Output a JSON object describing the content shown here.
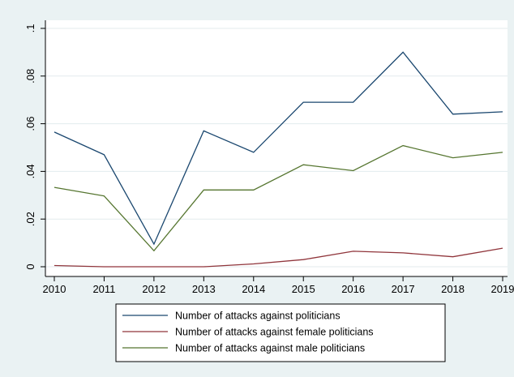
{
  "chart_data": {
    "type": "line",
    "title": "",
    "xlabel": "",
    "ylabel": "",
    "x": [
      "2010",
      "2011",
      "2012",
      "2013",
      "2014",
      "2015",
      "2016",
      "2017",
      "2018",
      "2019"
    ],
    "xlim": [
      2010,
      2019
    ],
    "ylim": [
      0,
      0.1
    ],
    "yticks": [
      0,
      0.02,
      0.04,
      0.06,
      0.08,
      0.1
    ],
    "ytick_labels": [
      "0",
      ".02",
      ".04",
      ".06",
      ".08",
      ".1"
    ],
    "grid": "horizontal",
    "legend_position": "bottom",
    "series": [
      {
        "name": "Number of attacks against politicians",
        "color": "#1a476f",
        "values": [
          0.0565,
          0.047,
          0.0095,
          0.057,
          0.048,
          0.069,
          0.069,
          0.09,
          0.064,
          0.065
        ]
      },
      {
        "name": "Number of attacks against female politicians",
        "color": "#90353b",
        "values": [
          0.0005,
          0.0,
          0.0,
          0.0,
          0.0012,
          0.003,
          0.0065,
          0.0058,
          0.0042,
          0.0078
        ]
      },
      {
        "name": "Number of attacks against male politicians",
        "color": "#55752f",
        "values": [
          0.0333,
          0.0297,
          0.0067,
          0.0322,
          0.0322,
          0.0428,
          0.0403,
          0.0508,
          0.0457,
          0.048
        ]
      }
    ]
  }
}
